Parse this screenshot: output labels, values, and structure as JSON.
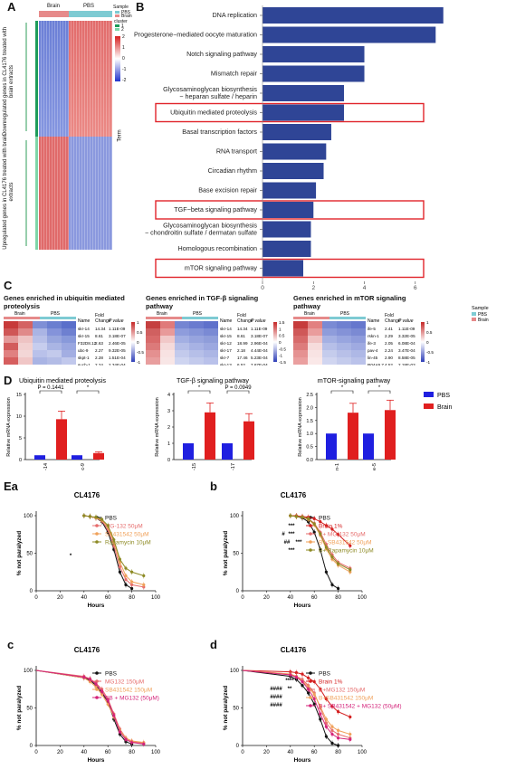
{
  "panels": {
    "A": {
      "label": "A",
      "sample_header": [
        "Brain",
        "PBS"
      ],
      "legend_sample_title": "Sample",
      "legend_sample_items": [
        "PBS",
        "Brain"
      ],
      "legend_cluster_title": "cluster",
      "legend_cluster_items": [
        "1",
        "2"
      ],
      "scale_ticks": [
        "2",
        "1",
        "0",
        "-1",
        "-2"
      ],
      "side_label_top": "Downregulated genes in CL4176 treated with brain extracts",
      "side_label_bottom": "Upregulated genes in CL4176 treated with brain extracts"
    },
    "B": {
      "label": "B",
      "y_title": "Term",
      "x_title": "-log(Pvalue, 10)",
      "x_ticks": [
        "0",
        "2",
        "4",
        "6"
      ],
      "colors": {
        "bar": "#2f4596",
        "highlight": "#e0242a"
      }
    },
    "C": {
      "label": "C",
      "titles": [
        "Genes enriched in ubiquitin mediated proteolysis",
        "Genes enriched in TGF-β signaling pathway",
        "Genes enriched in mTOR signaling pathway"
      ],
      "col_headers": [
        "Name",
        "Fold Change",
        "P value"
      ],
      "sample_header": [
        "Brain",
        "PBS"
      ],
      "legend_title": "Sample",
      "legend_items": [
        "PBS",
        "Brain"
      ],
      "tables": [
        {
          "rows": [
            [
              "skr-14",
              "14.34",
              "1.11E-09"
            ],
            [
              "skr-15",
              "8.61",
              "3.18E-07"
            ],
            [
              "F32D8.12",
              "2.63",
              "2.46E-05"
            ],
            [
              "ubc-9",
              "2.27",
              "9.32E-05"
            ],
            [
              "skpt-1",
              "2.28",
              "1.51E-04"
            ],
            [
              "such-1",
              "2.24",
              "2.34E-04"
            ]
          ],
          "scale": [
            "1",
            "0.5",
            "0",
            "-0.5",
            "-1"
          ]
        },
        {
          "rows": [
            [
              "skr-14",
              "14.34",
              "1.11E-09"
            ],
            [
              "skr-15",
              "8.61",
              "3.18E-07"
            ],
            [
              "skr-12",
              "18.99",
              "2.96E-04"
            ],
            [
              "skr-17",
              "2.18",
              "4.44E-04"
            ],
            [
              "skr-7",
              "17.46",
              "5.23E-04"
            ],
            [
              "skr-13",
              "6.52",
              "7.67E-04"
            ]
          ],
          "scale": [
            "1.5",
            "1",
            "0.5",
            "0",
            "-0.5",
            "-1",
            "-1.5"
          ]
        },
        {
          "rows": [
            [
              "ife-5",
              "2.41",
              "1.11E-09"
            ],
            [
              "rskn-1",
              "2.29",
              "3.32E-05"
            ],
            [
              "ife-3",
              "2.05",
              "6.08E-04"
            ],
            [
              "pav-4",
              "2.24",
              "3.47E-04"
            ],
            [
              "lin-45",
              "2.90",
              "8.58E-05"
            ],
            [
              "R04A9.7",
              "4.52",
              "2.18E-03"
            ]
          ],
          "scale": [
            "1",
            "0.5",
            "0",
            "-0.5",
            "-1"
          ]
        }
      ]
    },
    "D": {
      "label": "D",
      "y_title": "Relative mRNA expression",
      "legend": [
        "PBS",
        "Brain"
      ],
      "colors": {
        "PBS": "#1f1fe0",
        "Brain": "#e01f1f"
      }
    },
    "E": {
      "labels": [
        "Ea",
        "b",
        "c",
        "d"
      ],
      "x_title": "Hours",
      "y_title": "% not paralyzed"
    }
  },
  "chart_data": [
    {
      "type": "bar",
      "title": "",
      "xlabel": "-log(Pvalue, 10)",
      "ylabel": "Term",
      "xlim": [
        0,
        7.5
      ],
      "categories": [
        "DNA replication",
        "Progesterone−mediated oocyte maturation",
        "Notch signaling pathway",
        "Mismatch repair",
        "Glycosaminoglycan biosynthesis − heparan sulfate / heparin",
        "Ubiquitin mediated proteolysis",
        "Basal transcription factors",
        "RNA transport",
        "Circadian rhythm",
        "Base excision repair",
        "TGF−beta signaling pathway",
        "Glycosaminoglycan biosynthesis − chondroitin sulfate / dermatan sulfate",
        "Homologous recombination",
        "mTOR signaling pathway"
      ],
      "values": [
        7.1,
        6.8,
        4.0,
        4.0,
        3.2,
        3.2,
        2.7,
        2.5,
        2.4,
        2.1,
        2.0,
        1.9,
        1.9,
        1.6
      ],
      "highlighted": [
        "Ubiquitin mediated proteolysis",
        "TGF−beta signaling pathway",
        "mTOR signaling pathway"
      ]
    },
    {
      "type": "bar",
      "title": "Ubiquitin mediated proteolysis",
      "ylabel": "Relative mRNA expression",
      "categories": [
        "skr-14",
        "ubc-9"
      ],
      "ylim": [
        0,
        15
      ],
      "yticks": [
        "0",
        "5",
        "10",
        "15"
      ],
      "series": [
        {
          "name": "PBS",
          "values": [
            1,
            1
          ]
        },
        {
          "name": "Brain",
          "values": [
            9.3,
            1.5
          ]
        }
      ],
      "annotations": [
        "P = 0.1441",
        "*"
      ]
    },
    {
      "type": "bar",
      "title": "TGF-β signaling pathway",
      "ylabel": "Relative mRNA expression",
      "categories": [
        "skr-15",
        "skr-17"
      ],
      "ylim": [
        0,
        4
      ],
      "yticks": [
        "0",
        "1",
        "2",
        "3",
        "4"
      ],
      "series": [
        {
          "name": "PBS",
          "values": [
            1,
            1
          ]
        },
        {
          "name": "Brain",
          "values": [
            2.9,
            2.35
          ]
        }
      ],
      "annotations": [
        "*",
        "P = 0.0949"
      ]
    },
    {
      "type": "bar",
      "title": "mTOR-signaling pathway",
      "ylabel": "Relative mRNA expression",
      "categories": [
        "rskn-1",
        "ife-5"
      ],
      "ylim": [
        0,
        2.5
      ],
      "yticks": [
        "0.0",
        "0.5",
        "1.0",
        "1.5",
        "2.0",
        "2.5"
      ],
      "series": [
        {
          "name": "PBS",
          "values": [
            1,
            1
          ]
        },
        {
          "name": "Brain",
          "values": [
            1.8,
            1.9
          ]
        }
      ],
      "annotations": [
        "*",
        "*"
      ]
    },
    {
      "type": "line",
      "title": "CL4176",
      "xlabel": "Hours",
      "ylabel": "% not paralyzed",
      "xlim": [
        0,
        100
      ],
      "ylim": [
        0,
        100
      ],
      "xticks": [
        "0",
        "20",
        "40",
        "60",
        "80",
        "100"
      ],
      "yticks": [
        "0",
        "50",
        "100"
      ],
      "x": [
        40,
        45,
        50,
        55,
        60,
        65,
        70,
        75,
        80,
        90
      ],
      "series": [
        {
          "name": "PBS",
          "color": "#111111",
          "values": [
            100,
            99,
            97,
            92,
            78,
            55,
            25,
            8,
            3,
            null
          ]
        },
        {
          "name": "MG-132 50μM",
          "color": "#e66c6c",
          "values": [
            100,
            99,
            97,
            93,
            82,
            60,
            32,
            15,
            8,
            5
          ]
        },
        {
          "name": "SB431542 50μM",
          "color": "#f0a15a",
          "values": [
            100,
            99,
            97,
            94,
            85,
            65,
            38,
            20,
            12,
            8
          ]
        },
        {
          "name": "Rapamycin 10μM",
          "color": "#8d8a24",
          "values": [
            100,
            99,
            98,
            95,
            87,
            68,
            42,
            30,
            25,
            20
          ]
        }
      ],
      "annotations": [
        "*"
      ]
    },
    {
      "type": "line",
      "title": "CL4176",
      "xlabel": "Hours",
      "ylabel": "% not paralyzed",
      "xlim": [
        0,
        100
      ],
      "ylim": [
        0,
        100
      ],
      "xticks": [
        "0",
        "20",
        "40",
        "60",
        "80",
        "100"
      ],
      "yticks": [
        "0",
        "50",
        "100"
      ],
      "x": [
        40,
        45,
        50,
        55,
        60,
        65,
        70,
        75,
        80,
        90
      ],
      "series": [
        {
          "name": "PBS",
          "color": "#111111",
          "values": [
            100,
            99,
            97,
            92,
            78,
            55,
            25,
            8,
            3,
            null
          ]
        },
        {
          "name": "Brain 1%",
          "color": "#d41f1f",
          "values": [
            100,
            100,
            99,
            98,
            96,
            92,
            87,
            82,
            75,
            60
          ]
        },
        {
          "name": "B+ MG-132 50μM",
          "color": "#e66c6c",
          "values": [
            100,
            99,
            98,
            96,
            90,
            78,
            62,
            48,
            38,
            30
          ]
        },
        {
          "name": "B+ SB431542 50μM",
          "color": "#f0a15a",
          "values": [
            100,
            99,
            98,
            95,
            88,
            74,
            56,
            42,
            34,
            25
          ]
        },
        {
          "name": "B+ Rapamycin 10μM",
          "color": "#8d8a24",
          "values": [
            100,
            99,
            98,
            96,
            89,
            76,
            58,
            45,
            36,
            28
          ]
        }
      ],
      "annotations": [
        "***",
        "***",
        "##",
        "***",
        "***",
        "#"
      ]
    },
    {
      "type": "line",
      "title": "CL4176",
      "xlabel": "Hours",
      "ylabel": "% not paralyzed",
      "xlim": [
        0,
        100
      ],
      "ylim": [
        0,
        100
      ],
      "xticks": [
        "0",
        "20",
        "40",
        "60",
        "80",
        "100"
      ],
      "yticks": [
        "0",
        "50",
        "100"
      ],
      "x": [
        0,
        40,
        45,
        50,
        55,
        60,
        65,
        70,
        75,
        80,
        90
      ],
      "series": [
        {
          "name": "PBS",
          "color": "#111111",
          "values": [
            100,
            90,
            87,
            80,
            70,
            58,
            35,
            15,
            5,
            2,
            null
          ]
        },
        {
          "name": "MG132 150μM",
          "color": "#e66c6c",
          "values": [
            100,
            92,
            89,
            83,
            75,
            62,
            42,
            22,
            10,
            5,
            3
          ]
        },
        {
          "name": "SB431542 150μM",
          "color": "#f0a15a",
          "values": [
            100,
            90,
            85,
            78,
            68,
            55,
            38,
            20,
            10,
            6,
            4
          ]
        },
        {
          "name": "SB + MG132 (50μM)",
          "color": "#d4237a",
          "values": [
            100,
            91,
            88,
            82,
            72,
            60,
            40,
            18,
            8,
            4,
            2
          ]
        }
      ]
    },
    {
      "type": "line",
      "title": "CL4176",
      "xlabel": "Hours",
      "ylabel": "% not paralyzed",
      "xlim": [
        0,
        100
      ],
      "ylim": [
        0,
        100
      ],
      "xticks": [
        "0",
        "20",
        "40",
        "60",
        "80",
        "100"
      ],
      "yticks": [
        "0",
        "50",
        "100"
      ],
      "x": [
        0,
        40,
        45,
        50,
        55,
        60,
        65,
        70,
        75,
        80,
        90
      ],
      "series": [
        {
          "name": "PBS",
          "color": "#111111",
          "values": [
            100,
            92,
            88,
            80,
            70,
            55,
            35,
            12,
            3,
            0,
            null
          ]
        },
        {
          "name": "Brain 1%",
          "color": "#d41f1f",
          "values": [
            100,
            98,
            97,
            95,
            90,
            85,
            75,
            62,
            52,
            45,
            38
          ]
        },
        {
          "name": "B+MG132 150μM",
          "color": "#e66c6c",
          "values": [
            100,
            95,
            92,
            88,
            80,
            70,
            50,
            30,
            20,
            15,
            10
          ]
        },
        {
          "name": "B+SB431542 150μM",
          "color": "#f0a15a",
          "values": [
            100,
            95,
            92,
            86,
            78,
            68,
            52,
            35,
            25,
            20,
            15
          ]
        },
        {
          "name": "B+ SB431542 + MG132 (50μM)",
          "color": "#d4237a",
          "values": [
            100,
            94,
            91,
            85,
            75,
            62,
            42,
            25,
            15,
            10,
            8
          ]
        }
      ],
      "annotations": [
        "****",
        "####",
        "**",
        "####",
        "####"
      ]
    }
  ]
}
